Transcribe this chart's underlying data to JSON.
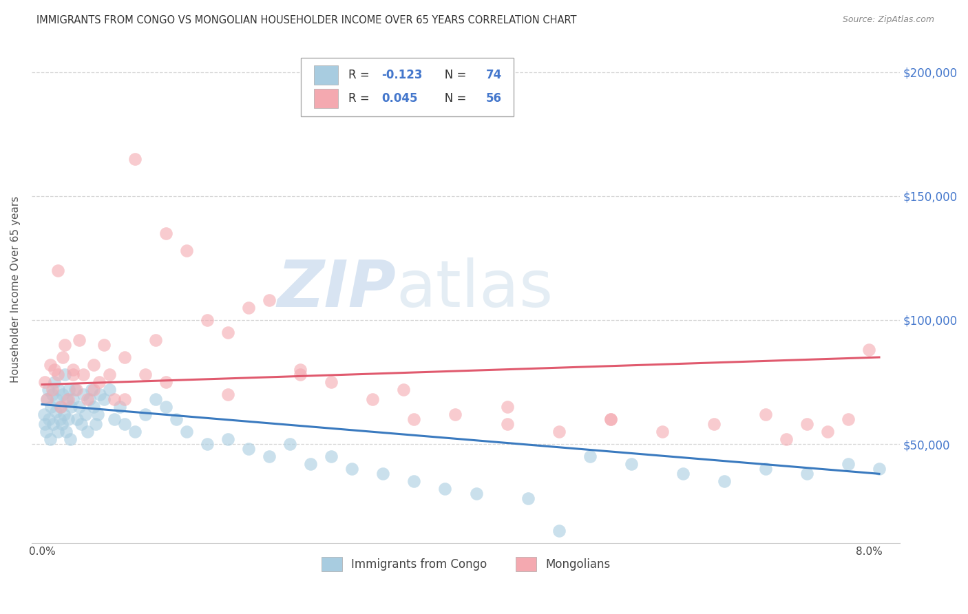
{
  "title": "IMMIGRANTS FROM CONGO VS MONGOLIAN HOUSEHOLDER INCOME OVER 65 YEARS CORRELATION CHART",
  "source": "Source: ZipAtlas.com",
  "ylabel": "Householder Income Over 65 years",
  "watermark_zip": "ZIP",
  "watermark_atlas": "atlas",
  "legend_congo": "Immigrants from Congo",
  "legend_mongolia": "Mongolians",
  "r_congo": "-0.123",
  "n_congo": "74",
  "r_mongolia": "0.045",
  "n_mongolia": "56",
  "yticks": [
    50000,
    100000,
    150000,
    200000
  ],
  "ytick_labels": [
    "$50,000",
    "$100,000",
    "$150,000",
    "$200,000"
  ],
  "xlim": [
    -0.001,
    0.083
  ],
  "ylim": [
    10000,
    215000
  ],
  "congo_color": "#a8cce0",
  "mongolia_color": "#f4a9b0",
  "congo_line_color": "#3a7abf",
  "mongolia_line_color": "#e05a6e",
  "congo_trend_x": [
    0.0,
    0.081
  ],
  "congo_trend_y": [
    66000,
    38000
  ],
  "mongolia_trend_x": [
    0.0,
    0.081
  ],
  "mongolia_trend_y": [
    74000,
    85000
  ],
  "congo_x": [
    0.0002,
    0.0003,
    0.0004,
    0.0005,
    0.0006,
    0.0007,
    0.0008,
    0.0009,
    0.001,
    0.0011,
    0.0012,
    0.0013,
    0.0014,
    0.0015,
    0.0016,
    0.0017,
    0.0018,
    0.0019,
    0.002,
    0.0021,
    0.0022,
    0.0023,
    0.0024,
    0.0025,
    0.0026,
    0.0027,
    0.0028,
    0.003,
    0.0032,
    0.0034,
    0.0036,
    0.0038,
    0.004,
    0.0042,
    0.0044,
    0.0046,
    0.0048,
    0.005,
    0.0052,
    0.0054,
    0.0056,
    0.006,
    0.0065,
    0.007,
    0.0075,
    0.008,
    0.009,
    0.01,
    0.011,
    0.012,
    0.013,
    0.014,
    0.016,
    0.018,
    0.02,
    0.022,
    0.024,
    0.026,
    0.028,
    0.03,
    0.033,
    0.036,
    0.039,
    0.042,
    0.047,
    0.05,
    0.053,
    0.057,
    0.062,
    0.066,
    0.07,
    0.074,
    0.078,
    0.081
  ],
  "congo_y": [
    62000,
    58000,
    55000,
    68000,
    72000,
    60000,
    52000,
    65000,
    70000,
    58000,
    75000,
    63000,
    68000,
    55000,
    72000,
    60000,
    65000,
    58000,
    70000,
    62000,
    78000,
    55000,
    68000,
    60000,
    72000,
    52000,
    65000,
    68000,
    72000,
    60000,
    65000,
    58000,
    70000,
    62000,
    55000,
    68000,
    72000,
    65000,
    58000,
    62000,
    70000,
    68000,
    72000,
    60000,
    65000,
    58000,
    55000,
    62000,
    68000,
    65000,
    60000,
    55000,
    50000,
    52000,
    48000,
    45000,
    50000,
    42000,
    45000,
    40000,
    38000,
    35000,
    32000,
    30000,
    28000,
    15000,
    45000,
    42000,
    38000,
    35000,
    40000,
    38000,
    42000,
    40000
  ],
  "mongolia_x": [
    0.0003,
    0.0005,
    0.0008,
    0.001,
    0.0012,
    0.0015,
    0.0018,
    0.002,
    0.0022,
    0.0025,
    0.003,
    0.0033,
    0.0036,
    0.004,
    0.0044,
    0.005,
    0.0055,
    0.006,
    0.0065,
    0.007,
    0.008,
    0.009,
    0.01,
    0.011,
    0.012,
    0.014,
    0.016,
    0.018,
    0.02,
    0.022,
    0.025,
    0.028,
    0.032,
    0.036,
    0.04,
    0.045,
    0.05,
    0.055,
    0.06,
    0.065,
    0.07,
    0.072,
    0.074,
    0.076,
    0.078,
    0.08,
    0.0015,
    0.003,
    0.005,
    0.008,
    0.012,
    0.018,
    0.025,
    0.035,
    0.045,
    0.055
  ],
  "mongolia_y": [
    75000,
    68000,
    82000,
    72000,
    80000,
    78000,
    65000,
    85000,
    90000,
    68000,
    80000,
    72000,
    92000,
    78000,
    68000,
    82000,
    75000,
    90000,
    78000,
    68000,
    85000,
    165000,
    78000,
    92000,
    135000,
    128000,
    100000,
    95000,
    105000,
    108000,
    78000,
    75000,
    68000,
    60000,
    62000,
    58000,
    55000,
    60000,
    55000,
    58000,
    62000,
    52000,
    58000,
    55000,
    60000,
    88000,
    120000,
    78000,
    72000,
    68000,
    75000,
    70000,
    80000,
    72000,
    65000,
    60000
  ]
}
